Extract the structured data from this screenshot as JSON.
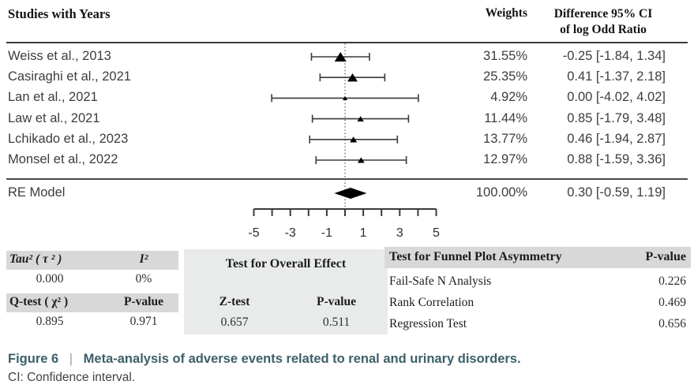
{
  "colors": {
    "header_band": "#d8d8d8",
    "overall_panel_bg": "#e9ebeb",
    "marker_black": "#000000",
    "line_dark": "#3a3a3a",
    "caption_teal": "#3c5f6a",
    "caption_pipe_gray": "#8fa3ab",
    "row_text_gray": "#3d3d3d"
  },
  "header": {
    "studies_label": "Studies with Years",
    "weights_label": "Weights",
    "difference_line1": "Difference 95% CI",
    "difference_line2": "of log Odd Ratio"
  },
  "chart_data": {
    "type": "forest",
    "x_axis": {
      "min": -5,
      "max": 5,
      "tick_step": 1,
      "labeled_ticks": [
        -5,
        -3,
        -1,
        1,
        3,
        5
      ],
      "reference_line": 0
    },
    "studies": [
      {
        "label": "Weiss et al., 2013",
        "weight_text": "31.55%",
        "weight_value": 31.55,
        "estimate": -0.25,
        "ci_low": -1.84,
        "ci_high": 1.34,
        "estimate_text": "-0.25 [-1.84, 1.34]"
      },
      {
        "label": "Casiraghi et al., 2021",
        "weight_text": "25.35%",
        "weight_value": 25.35,
        "estimate": 0.41,
        "ci_low": -1.37,
        "ci_high": 2.18,
        "estimate_text": "0.41 [-1.37, 2.18]"
      },
      {
        "label": "Lan et al., 2021",
        "weight_text": "4.92%",
        "weight_value": 4.92,
        "estimate": 0.0,
        "ci_low": -4.02,
        "ci_high": 4.02,
        "estimate_text": "0.00 [-4.02, 4.02]"
      },
      {
        "label": "Law et al., 2021",
        "weight_text": "11.44%",
        "weight_value": 11.44,
        "estimate": 0.85,
        "ci_low": -1.79,
        "ci_high": 3.48,
        "estimate_text": "0.85 [-1.79, 3.48]"
      },
      {
        "label": "Lchikado et al., 2023",
        "weight_text": "13.77%",
        "weight_value": 13.77,
        "estimate": 0.46,
        "ci_low": -1.94,
        "ci_high": 2.87,
        "estimate_text": "0.46 [-1.94, 2.87]"
      },
      {
        "label": "Monsel et al., 2022",
        "weight_text": "12.97%",
        "weight_value": 12.97,
        "estimate": 0.88,
        "ci_low": -1.59,
        "ci_high": 3.36,
        "estimate_text": "0.88 [-1.59, 3.36]"
      }
    ],
    "summary": {
      "label": "RE Model",
      "weight_text": "100.00%",
      "weight_value": 100.0,
      "estimate": 0.3,
      "ci_low": -0.59,
      "ci_high": 1.19,
      "estimate_text": "0.30 [-0.59, 1.19]"
    }
  },
  "stats": {
    "heterogeneity": {
      "tau2_label": "Tau² ( τ ² )",
      "i2_label": "I²",
      "tau2_value": "0.000",
      "i2_value": "0%",
      "qtest_label": "Q-test ( χ² )",
      "p_label": "P-value",
      "q_value": "0.895",
      "q_p_value": "0.971"
    },
    "overall": {
      "title": "Test for Overall Effect",
      "z_label": "Z-test",
      "p_label": "P-value",
      "z_value": "0.657",
      "p_value": "0.511"
    },
    "funnel": {
      "title": "Test for Funnel Plot Asymmetry",
      "p_label": "P-value",
      "rows": [
        {
          "label": "Fail-Safe N Analysis",
          "p": "0.226"
        },
        {
          "label": "Rank Correlation",
          "p": "0.469"
        },
        {
          "label": "Regression Test",
          "p": "0.656"
        }
      ]
    }
  },
  "caption": {
    "figure_label": "Figure 6",
    "separator": "|",
    "title": "Meta-analysis of adverse events related to renal and urinary disorders.",
    "note": "CI: Confidence interval."
  }
}
